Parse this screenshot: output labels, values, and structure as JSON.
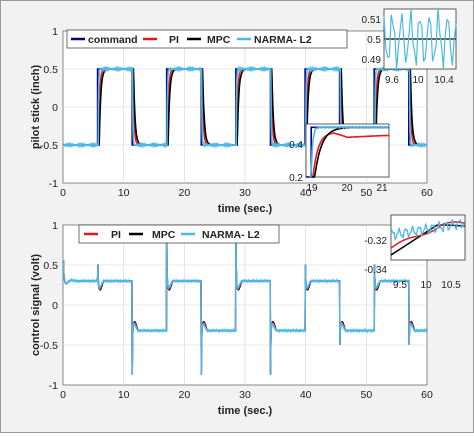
{
  "chart_data": [
    {
      "type": "line",
      "xlabel": "time (sec.)",
      "ylabel": "pilot stick (inch)",
      "xlim": [
        0,
        60
      ],
      "ylim": [
        -1,
        1
      ],
      "x_ticks": [
        "0",
        "10",
        "20",
        "30",
        "40",
        "50",
        "60"
      ],
      "y_ticks": [
        "-1",
        "-0.5",
        "0",
        "0.5",
        "1"
      ],
      "grid": true,
      "legend_position": "top-left, horizontal",
      "square_wave": {
        "high": 0.5,
        "low": -0.5,
        "high_intervals": [
          [
            5.7,
            11.4
          ],
          [
            17.1,
            22.8
          ],
          [
            28.5,
            34.2
          ],
          [
            39.9,
            45.6
          ],
          [
            51.3,
            57.0
          ]
        ]
      },
      "series": [
        {
          "name": "command",
          "color": "#00008b"
        },
        {
          "name": "PI",
          "color": "#e41a1c"
        },
        {
          "name": "MPC",
          "color": "#000000"
        },
        {
          "name": "NARMA- L2",
          "color": "#4db8e8"
        }
      ],
      "insets": [
        {
          "xlim": [
            9.4,
            10.6
          ],
          "ylim": [
            0.485,
            0.515
          ],
          "x_ticks": [
            "9.6",
            "10",
            "10.4"
          ],
          "y_ticks": [
            "0.51",
            "0.5",
            "0.49"
          ]
        },
        {
          "xlim": [
            18.8,
            21.2
          ],
          "ylim": [
            0.2,
            0.52
          ],
          "x_ticks": [
            "19",
            "20",
            "21"
          ],
          "y_ticks": [
            "0.4",
            "0.2"
          ]
        }
      ]
    },
    {
      "type": "line",
      "xlabel": "time (sec.)",
      "ylabel": "control signal (volt)",
      "xlim": [
        0,
        60
      ],
      "ylim": [
        -1,
        1
      ],
      "x_ticks": [
        "0",
        "10",
        "20",
        "30",
        "40",
        "50",
        "60"
      ],
      "y_ticks": [
        "-1",
        "-0.5",
        "0",
        "0.5",
        "1"
      ],
      "grid": true,
      "legend_position": "top-left, horizontal",
      "steady_levels": {
        "high": 0.3,
        "low": -0.32,
        "spike_high": 0.93,
        "spike_low": -0.87
      },
      "series": [
        {
          "name": "PI",
          "color": "#e41a1c"
        },
        {
          "name": "MPC",
          "color": "#000000"
        },
        {
          "name": "NARMA- L2",
          "color": "#4db8e8"
        }
      ],
      "insets": [
        {
          "xlim": [
            9.3,
            10.75
          ],
          "ylim": [
            -0.35,
            -0.305
          ],
          "x_ticks": [
            "9.5",
            "10",
            "10.5"
          ],
          "y_ticks": [
            "-0.32",
            "-0.34"
          ]
        }
      ]
    }
  ]
}
